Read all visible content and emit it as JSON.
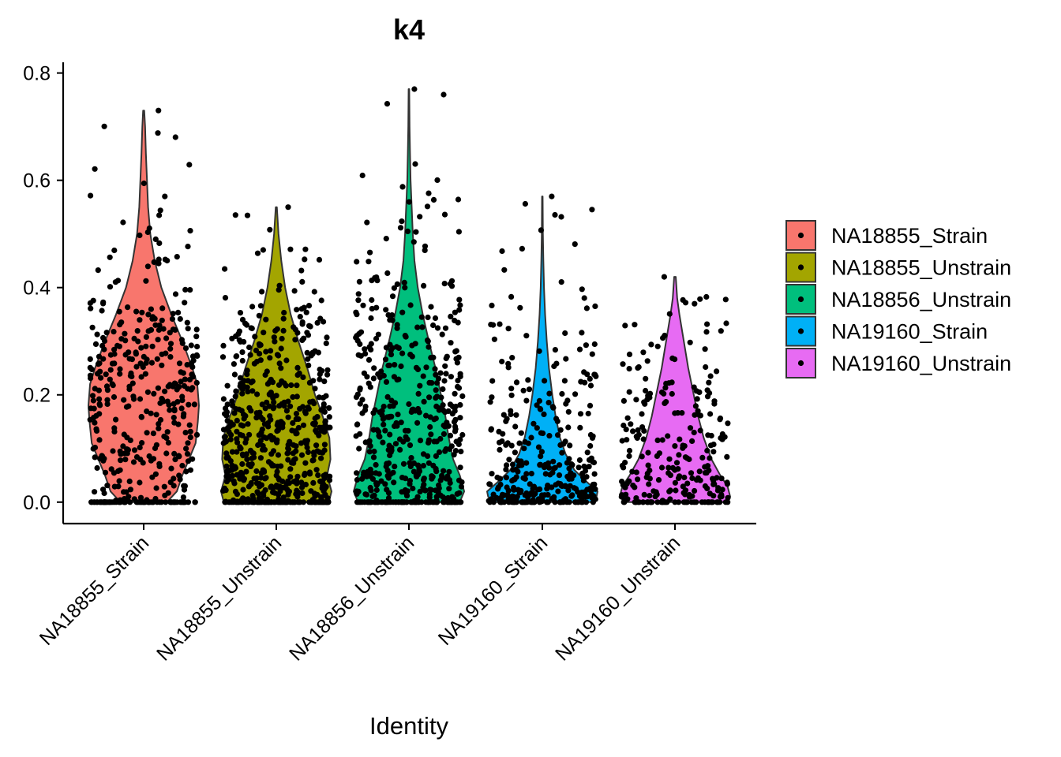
{
  "chart_data": {
    "type": "violin",
    "title": "k4",
    "xlabel": "Identity",
    "ylabel": "",
    "ylim": [
      -0.04,
      0.82
    ],
    "yticks": [
      "0.0",
      "0.2",
      "0.4",
      "0.6",
      "0.8"
    ],
    "ytick_values": [
      0.0,
      0.2,
      0.4,
      0.6,
      0.8
    ],
    "legend_position": "right",
    "grid": false,
    "categories": [
      "NA18855_Strain",
      "NA18855_Unstrain",
      "NA18856_Unstrain",
      "NA19160_Strain",
      "NA19160_Unstrain"
    ],
    "series": [
      {
        "name": "NA18855_Strain",
        "color": "#F8766D",
        "max": 0.73,
        "density_y": [
          0.0,
          0.02,
          0.05,
          0.08,
          0.11,
          0.15,
          0.18,
          0.22,
          0.25,
          0.3,
          0.35,
          0.4,
          0.45,
          0.5,
          0.55,
          0.6,
          0.65,
          0.7,
          0.73
        ],
        "density_w": [
          0.42,
          0.6,
          0.7,
          0.82,
          0.94,
          0.98,
          1.0,
          0.97,
          0.88,
          0.7,
          0.5,
          0.32,
          0.2,
          0.12,
          0.08,
          0.06,
          0.04,
          0.025,
          0.01
        ],
        "points": 420
      },
      {
        "name": "NA18855_Unstrain",
        "color": "#A3A500",
        "max": 0.55,
        "density_y": [
          0.0,
          0.02,
          0.05,
          0.08,
          0.12,
          0.16,
          0.2,
          0.25,
          0.3,
          0.35,
          0.4,
          0.45,
          0.5,
          0.55
        ],
        "density_w": [
          0.95,
          1.0,
          0.92,
          0.98,
          0.96,
          0.84,
          0.7,
          0.56,
          0.4,
          0.26,
          0.16,
          0.09,
          0.04,
          0.01
        ],
        "points": 620
      },
      {
        "name": "NA18856_Unstrain",
        "color": "#00BF7D",
        "max": 0.77,
        "density_y": [
          0.0,
          0.02,
          0.05,
          0.08,
          0.12,
          0.16,
          0.2,
          0.25,
          0.3,
          0.35,
          0.4,
          0.45,
          0.5,
          0.55,
          0.6,
          0.65,
          0.7,
          0.77
        ],
        "density_w": [
          0.92,
          1.0,
          0.92,
          0.8,
          0.72,
          0.66,
          0.58,
          0.48,
          0.36,
          0.25,
          0.16,
          0.1,
          0.07,
          0.05,
          0.03,
          0.02,
          0.012,
          0.005
        ],
        "points": 500
      },
      {
        "name": "NA19160_Strain",
        "color": "#00B0F6",
        "max": 0.57,
        "density_y": [
          0.0,
          0.01,
          0.02,
          0.04,
          0.06,
          0.09,
          0.12,
          0.16,
          0.2,
          0.25,
          0.3,
          0.35,
          0.4,
          0.45,
          0.5,
          0.57
        ],
        "density_w": [
          0.9,
          0.98,
          1.0,
          0.78,
          0.58,
          0.42,
          0.32,
          0.24,
          0.18,
          0.12,
          0.08,
          0.05,
          0.03,
          0.018,
          0.01,
          0.005
        ],
        "points": 340
      },
      {
        "name": "NA19160_Unstrain",
        "color": "#E76BF3",
        "max": 0.42,
        "density_y": [
          0.0,
          0.01,
          0.03,
          0.05,
          0.08,
          0.12,
          0.16,
          0.2,
          0.25,
          0.3,
          0.35,
          0.38,
          0.42
        ],
        "density_w": [
          0.9,
          1.0,
          0.95,
          0.82,
          0.66,
          0.52,
          0.42,
          0.34,
          0.24,
          0.16,
          0.08,
          0.04,
          0.015
        ],
        "points": 260
      }
    ]
  }
}
